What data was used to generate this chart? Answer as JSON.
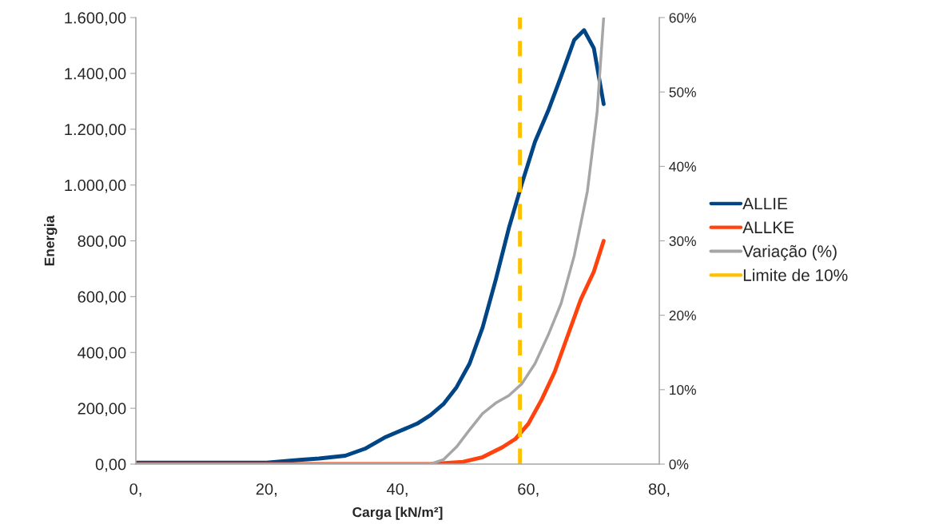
{
  "chart_data": {
    "type": "line",
    "xlabel": "Carga [kN/m²]",
    "ylabel": "Energia",
    "xlim": [
      0,
      80
    ],
    "xticks": [
      {
        "value": 0,
        "label": "0,"
      },
      {
        "value": 20,
        "label": "20,"
      },
      {
        "value": 40,
        "label": "40,"
      },
      {
        "value": 60,
        "label": "60,"
      },
      {
        "value": 80,
        "label": "80,"
      }
    ],
    "ylim": [
      0,
      1600
    ],
    "yticks": [
      {
        "value": 0,
        "label": "0,00"
      },
      {
        "value": 200,
        "label": "200,00"
      },
      {
        "value": 400,
        "label": "400,00"
      },
      {
        "value": 600,
        "label": "600,00"
      },
      {
        "value": 800,
        "label": "800,00"
      },
      {
        "value": 1000,
        "label": "1.000,00"
      },
      {
        "value": 1200,
        "label": "1.200,00"
      },
      {
        "value": 1400,
        "label": "1.400,00"
      },
      {
        "value": 1600,
        "label": "1.600,00"
      }
    ],
    "y2lim": [
      0,
      60
    ],
    "y2ticks": [
      {
        "value": 0,
        "label": "0%"
      },
      {
        "value": 10,
        "label": "10%"
      },
      {
        "value": 20,
        "label": "20%"
      },
      {
        "value": 30,
        "label": "30%"
      },
      {
        "value": 40,
        "label": "40%"
      },
      {
        "value": 50,
        "label": "50%"
      },
      {
        "value": 60,
        "label": "60%"
      }
    ],
    "grid": false,
    "legend": "right",
    "marker": "none",
    "series": [
      {
        "name": "ALLIE",
        "color": "#004586",
        "x": [
          0,
          20,
          25,
          28,
          32,
          35,
          38,
          40,
          43,
          45,
          47,
          49,
          51,
          53,
          55,
          57,
          59,
          61,
          63,
          65,
          67,
          68.5,
          70,
          71.5
        ],
        "values": [
          5,
          5,
          15,
          20,
          30,
          55,
          95,
          115,
          145,
          175,
          215,
          275,
          360,
          490,
          660,
          845,
          1005,
          1155,
          1265,
          1390,
          1520,
          1555,
          1490,
          1290
        ]
      },
      {
        "name": "ALLKE",
        "color": "#ff420e",
        "x": [
          0,
          45,
          50,
          53,
          56,
          58,
          60,
          62,
          64,
          66,
          68,
          70,
          71.5
        ],
        "values": [
          0,
          0,
          8,
          25,
          60,
          90,
          145,
          230,
          330,
          460,
          590,
          690,
          800
        ]
      },
      {
        "name": "Variação (%)",
        "color": "#a6a6a6",
        "axis": "y2",
        "x": [
          0,
          45,
          47,
          49,
          51,
          53,
          55,
          57,
          59,
          61,
          63,
          65,
          67,
          69,
          70.5,
          71.5
        ],
        "values": [
          0,
          0,
          0.6,
          2.3,
          4.6,
          6.8,
          8.2,
          9.2,
          10.8,
          13.5,
          17.3,
          21.6,
          28,
          36.6,
          47.3,
          60
        ]
      },
      {
        "name": "Limite de 10%",
        "color": "#ffc000",
        "line_style": "dashed",
        "x": [
          58.7,
          58.7
        ],
        "values": [
          0,
          1600
        ]
      }
    ]
  }
}
